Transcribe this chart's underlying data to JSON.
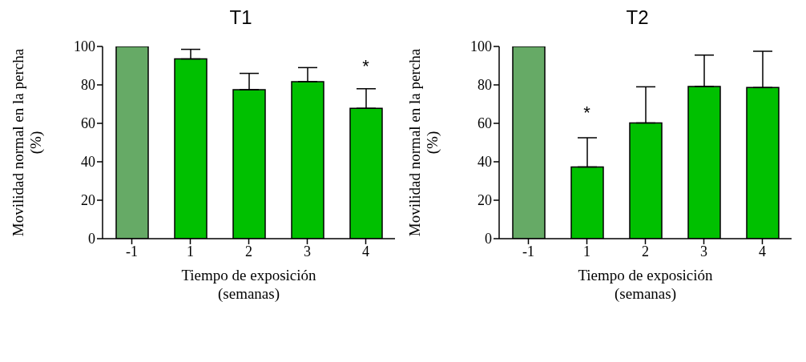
{
  "chart_data": [
    {
      "type": "bar",
      "title": "T1",
      "xlabel": "Tiempo de exposición\n(semanas)",
      "ylabel": "Movilidad normal en la percha\n(%)",
      "categories": [
        "-1",
        "1",
        "2",
        "3",
        "4"
      ],
      "values": [
        100,
        93.5,
        77.5,
        81.7,
        67.8
      ],
      "colors": [
        "#66aa66",
        "#00c000",
        "#00c000",
        "#00c000",
        "#00c000"
      ],
      "errors": [
        null,
        [
          93.5,
          98.5
        ],
        [
          77.5,
          86
        ],
        [
          81.7,
          89
        ],
        [
          67.8,
          78
        ]
      ],
      "ylim": [
        0,
        100
      ],
      "yticks": [
        0,
        20,
        40,
        60,
        80,
        100
      ],
      "grid": false,
      "legend": false,
      "annotations": [
        {
          "text": "*",
          "x": "4",
          "y": 67.8
        }
      ]
    },
    {
      "type": "bar",
      "title": "T2",
      "xlabel": "Tiempo de exposición\n(semanas)",
      "ylabel": "Movilidad normal en la percha\n(%)",
      "categories": [
        "-1",
        "1",
        "2",
        "3",
        "4"
      ],
      "values": [
        100,
        37.3,
        60.2,
        79.2,
        78.6
      ],
      "colors": [
        "#66aa66",
        "#00c000",
        "#00c000",
        "#00c000",
        "#00c000"
      ],
      "errors": [
        null,
        [
          37.3,
          52.5
        ],
        [
          60.2,
          79
        ],
        [
          79.2,
          95.5
        ],
        [
          78.6,
          97.5
        ]
      ],
      "ylim": [
        0,
        100
      ],
      "yticks": [
        0,
        20,
        40,
        60,
        80,
        100
      ],
      "grid": false,
      "legend": false,
      "annotations": [
        {
          "text": "*",
          "x": "1",
          "y": 37.3
        }
      ]
    }
  ]
}
